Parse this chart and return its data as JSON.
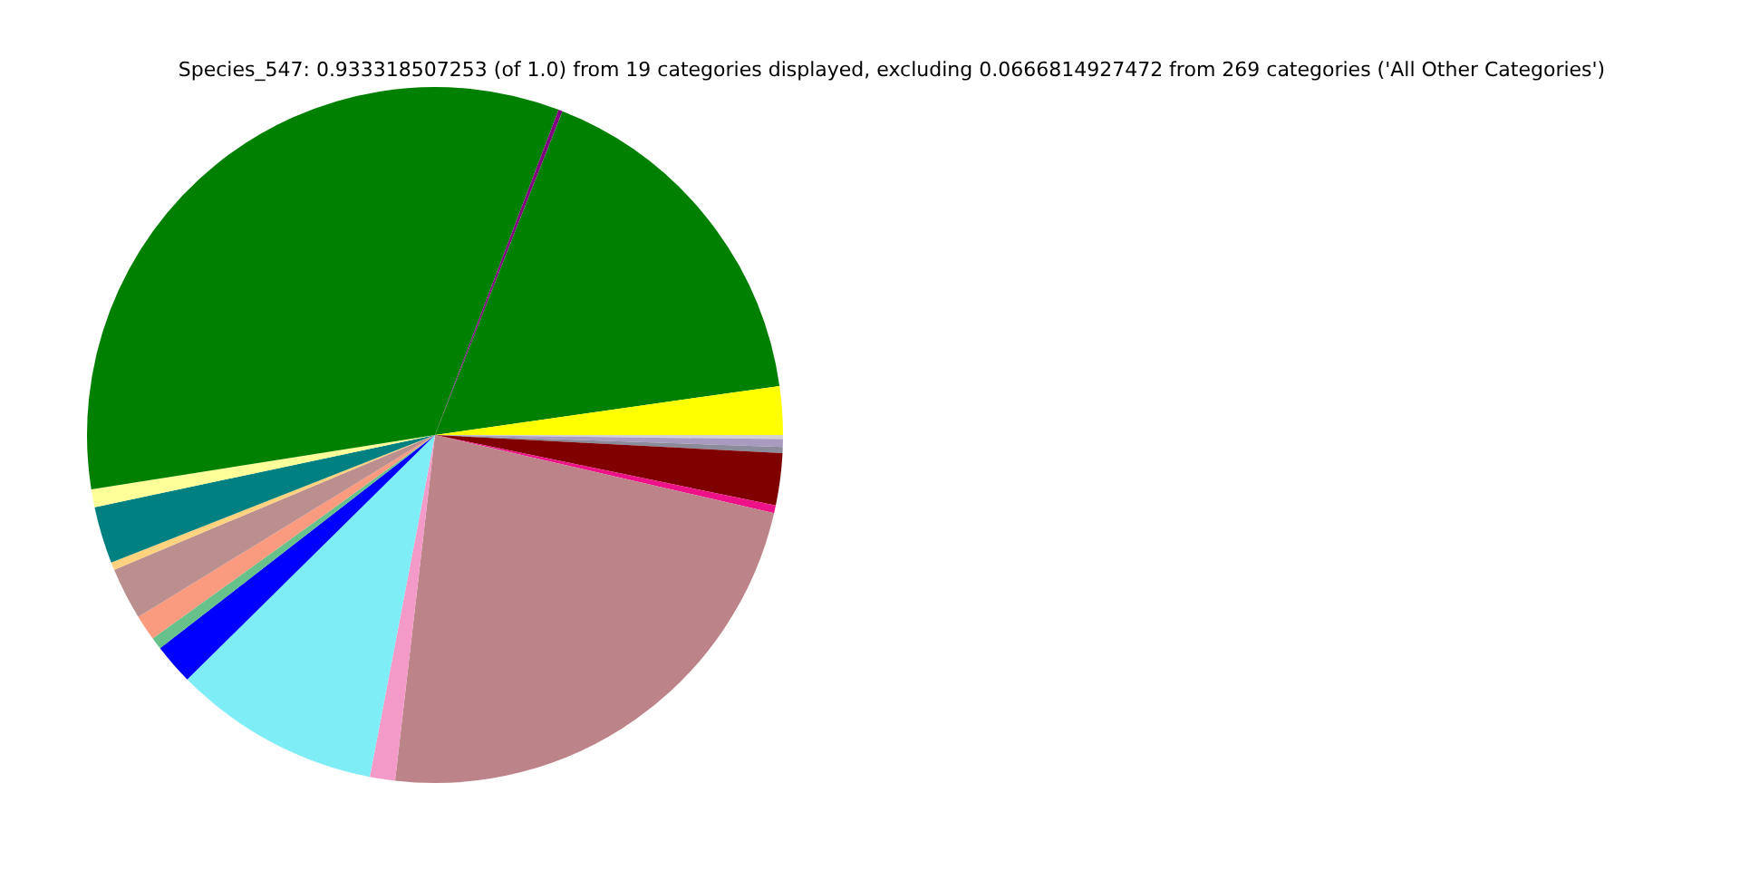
{
  "chart_data": {
    "type": "pie",
    "title": "Species_547: 0.933318507253 (of 1.0) from 19 categories displayed, excluding 0.0666814927472 from 269 categories ('All Other Categories')",
    "categories": [
      null,
      null,
      null,
      null,
      null,
      null,
      null,
      null,
      null,
      null,
      null,
      null,
      null,
      null,
      null,
      null,
      null,
      null,
      null
    ],
    "values": [
      2.25,
      16.78,
      0.19,
      33.28,
      0.83,
      2.64,
      0.36,
      2.42,
      1.19,
      0.56,
      1.89,
      9.61,
      1.17,
      23.22,
      0.36,
      2.42,
      0.28,
      0.36,
      0.19
    ],
    "colors": [
      "#ffff00",
      "#008000",
      "#800080",
      "#008000",
      "#ffff99",
      "#008080",
      "#ffd27f",
      "#bc8f8f",
      "#fa9a7f",
      "#66c28a",
      "#0000ff",
      "#7fedf5",
      "#f49ac8",
      "#bc8388",
      "#ee1289",
      "#800000",
      "#8b8b9b",
      "#a99bc0",
      "#d3d3d3"
    ],
    "legend": false
  }
}
